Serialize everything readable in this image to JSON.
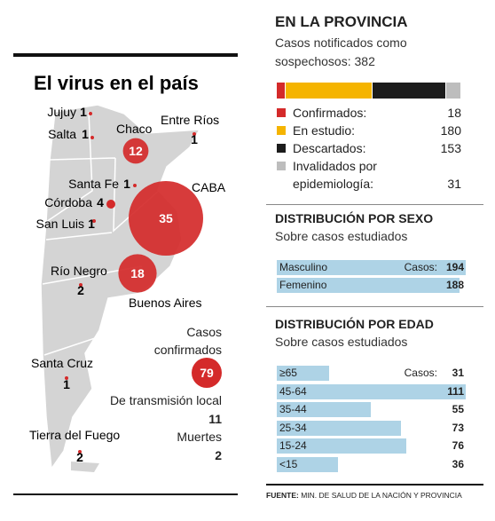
{
  "map": {
    "title": "El virus en el país",
    "regions": [
      {
        "name": "Jujuy",
        "cases": 1
      },
      {
        "name": "Salta",
        "cases": 1
      },
      {
        "name": "Chaco",
        "cases": 12
      },
      {
        "name": "Entre Ríos",
        "cases": 1
      },
      {
        "name": "Santa Fe",
        "cases": 1
      },
      {
        "name": "Córdoba",
        "cases": 4
      },
      {
        "name": "CABA",
        "cases": 35
      },
      {
        "name": "San Luis",
        "cases": 1
      },
      {
        "name": "Río Negro",
        "cases": 2
      },
      {
        "name": "Buenos Aires",
        "cases": 18
      },
      {
        "name": "Santa Cruz",
        "cases": 1
      },
      {
        "name": "Tierra del Fuego",
        "cases": 2
      }
    ],
    "color": "#d42a2a",
    "legend": {
      "confirmed_label": "Casos confirmados",
      "confirmed": 79,
      "local_label": "De transmisión local",
      "local": 11,
      "deaths_label": "Muertes",
      "deaths": 2
    }
  },
  "province": {
    "title": "EN LA PROVINCIA",
    "subtitle": "Casos notificados como sospechosos: 382",
    "breakdown": [
      {
        "label": "Confirmados:",
        "value": 18,
        "color": "#d42a2a"
      },
      {
        "label": "En estudio:",
        "value": 180,
        "color": "#f5b400"
      },
      {
        "label": "Descartados:",
        "value": 153,
        "color": "#1c1c1c"
      },
      {
        "label": "Invalidados por epidemiología:",
        "value": 31,
        "color": "#bdbdbd"
      }
    ]
  },
  "sex": {
    "title": "DISTRIBUCIÓN POR SEXO",
    "subtitle": "Sobre casos estudiados",
    "cases_label": "Casos:",
    "color": "#aed3e6",
    "rows": [
      {
        "label": "Masculino",
        "value": 194
      },
      {
        "label": "Femenino",
        "value": 188
      }
    ]
  },
  "age": {
    "title": "DISTRIBUCIÓN POR EDAD",
    "subtitle": "Sobre casos estudiados",
    "cases_label": "Casos:",
    "color": "#aed3e6",
    "rows": [
      {
        "label": "≥65",
        "value": 31
      },
      {
        "label": "45-64",
        "value": 111
      },
      {
        "label": "35-44",
        "value": 55
      },
      {
        "label": "25-34",
        "value": 73
      },
      {
        "label": "15-24",
        "value": 76
      },
      {
        "label": "<15",
        "value": 36
      }
    ]
  },
  "footer": {
    "source_label": "FUENTE:",
    "source": "MIN. DE SALUD DE LA NACIÓN Y PROVINCIA"
  }
}
